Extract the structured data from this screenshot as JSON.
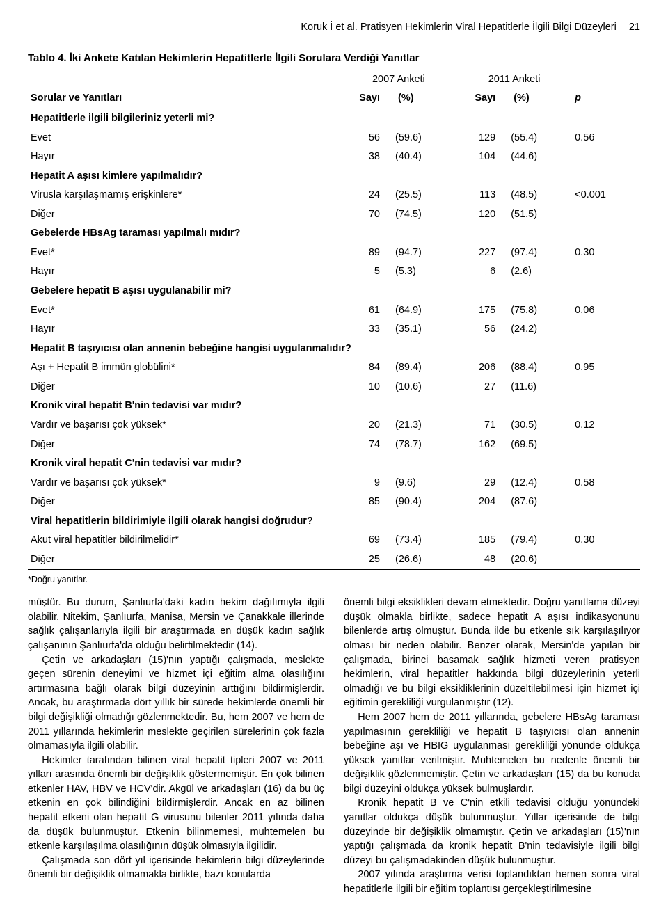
{
  "header": {
    "left": "Koruk İ et al. Pratisyen Hekimlerin Viral Hepatitlerle İlgili Bilgi Düzeyleri",
    "page": "21"
  },
  "table": {
    "title": "Tablo 4. İki Ankete Katılan Hekimlerin Hepatitlerle İlgili Sorulara Verdiği Yanıtlar",
    "col_group_a": "2007 Anketi",
    "col_group_b": "2011 Anketi",
    "col_q": "Sorular ve Yanıtları",
    "col_sayi": "Sayı",
    "col_pct": "(%)",
    "col_p": "p",
    "sections": [
      {
        "q": "Hepatitlerle ilgili bilgileriniz yeterli mi?",
        "rows": [
          [
            "Evet",
            "56",
            "(59.6)",
            "129",
            "(55.4)",
            "0.56"
          ],
          [
            "Hayır",
            "38",
            "(40.4)",
            "104",
            "(44.6)",
            ""
          ]
        ]
      },
      {
        "q": "Hepatit A aşısı kimlere yapılmalıdır?",
        "rows": [
          [
            "Virusla karşılaşmamış erişkinlere*",
            "24",
            "(25.5)",
            "113",
            "(48.5)",
            "<0.001"
          ],
          [
            "Diğer",
            "70",
            "(74.5)",
            "120",
            "(51.5)",
            ""
          ]
        ]
      },
      {
        "q": "Gebelerde HBsAg taraması yapılmalı mıdır?",
        "rows": [
          [
            "Evet*",
            "89",
            "(94.7)",
            "227",
            "(97.4)",
            "0.30"
          ],
          [
            "Hayır",
            "5",
            "(5.3)",
            "6",
            "(2.6)",
            ""
          ]
        ]
      },
      {
        "q": "Gebelere hepatit B aşısı uygulanabilir mi?",
        "rows": [
          [
            "Evet*",
            "61",
            "(64.9)",
            "175",
            "(75.8)",
            "0.06"
          ],
          [
            "Hayır",
            "33",
            "(35.1)",
            "56",
            "(24.2)",
            ""
          ]
        ]
      },
      {
        "q": "Hepatit B taşıyıcısı olan annenin bebeğine hangisi uygulanmalıdır?",
        "rows": [
          [
            "Aşı + Hepatit B immün globülini*",
            "84",
            "(89.4)",
            "206",
            "(88.4)",
            "0.95"
          ],
          [
            "Diğer",
            "10",
            "(10.6)",
            "27",
            "(11.6)",
            ""
          ]
        ]
      },
      {
        "q": "Kronik viral hepatit B'nin tedavisi var mıdır?",
        "rows": [
          [
            "Vardır ve başarısı çok yüksek*",
            "20",
            "(21.3)",
            "71",
            "(30.5)",
            "0.12"
          ],
          [
            "Diğer",
            "74",
            "(78.7)",
            "162",
            "(69.5)",
            ""
          ]
        ]
      },
      {
        "q": "Kronik viral hepatit C'nin tedavisi var mıdır?",
        "rows": [
          [
            "Vardır ve başarısı çok yüksek*",
            "9",
            "(9.6)",
            "29",
            "(12.4)",
            "0.58"
          ],
          [
            "Diğer",
            "85",
            "(90.4)",
            "204",
            "(87.6)",
            ""
          ]
        ]
      },
      {
        "q": "Viral hepatitlerin bildirimiyle ilgili olarak hangisi doğrudur?",
        "rows": [
          [
            "Akut viral hepatitler bildirilmelidir*",
            "69",
            "(73.4)",
            "185",
            "(79.4)",
            "0.30"
          ],
          [
            "Diğer",
            "25",
            "(26.6)",
            "48",
            "(20.6)",
            ""
          ]
        ]
      }
    ],
    "footnote": "*Doğru yanıtlar."
  },
  "body": {
    "left": [
      "müştür. Bu durum, Şanlıurfa'daki kadın hekim dağılımıyla ilgili olabilir. Nitekim, Şanlıurfa, Manisa, Mersin ve Çanakkale illerinde sağlık çalışanlarıyla ilgili bir araştırmada en düşük kadın sağlık çalışanının Şanlıurfa'da olduğu belirtilmektedir (14).",
      "Çetin ve arkadaşları (15)'nın yaptığı çalışmada, meslekte geçen sürenin deneyimi ve hizmet içi eğitim alma olasılığını artırmasına bağlı olarak bilgi düzeyinin arttığını bildirmişlerdir. Ancak, bu araştırmada dört yıllık bir sürede hekimlerde önemli bir bilgi değişikliği olmadığı gözlenmektedir. Bu, hem 2007 ve hem de 2011 yıllarında hekimlerin meslekte geçirilen sürelerinin çok fazla olmamasıyla ilgili olabilir.",
      "Hekimler tarafından bilinen viral hepatit tipleri 2007 ve 2011 yılları arasında önemli bir değişiklik göstermemiştir. En çok bilinen etkenler HAV, HBV ve HCV'dir. Akgül ve arkadaşları (16) da bu üç etkenin en çok bilindiğini bildirmişlerdir. Ancak en az bilinen hepatit etkeni olan hepatit G virusunu bilenler 2011 yılında daha da düşük bulunmuştur. Etkenin bilinmemesi, muhtemelen bu etkenle karşılaşılma olasılığının düşük olmasıyla ilgilidir.",
      "Çalışmada son dört yıl içerisinde hekimlerin bilgi düzeylerinde önemli bir değişiklik olmamakla birlikte, bazı konularda"
    ],
    "right": [
      "önemli bilgi eksiklikleri devam etmektedir. Doğru yanıtlama düzeyi düşük olmakla birlikte, sadece hepatit A aşısı indikasyonunu bilenlerde artış olmuştur. Bunda ilde bu etkenle sık karşılaşılıyor olması bir neden olabilir. Benzer olarak, Mersin'de yapılan bir çalışmada, birinci basamak sağlık hizmeti veren pratisyen hekimlerin, viral hepatitler hakkında bilgi düzeylerinin yeterli olmadığı ve bu bilgi eksikliklerinin düzeltilebilmesi için hizmet içi eğitimin gerekliliği vurgulanmıştır (12).",
      "Hem 2007 hem de 2011 yıllarında, gebelere HBsAg taraması yapılmasının gerekliliği ve hepatit B taşıyıcısı olan annenin bebeğine aşı ve HBIG uygulanması gerekliliği yönünde oldukça yüksek yanıtlar verilmiştir. Muhtemelen bu nedenle önemli bir değişiklik gözlenmemiştir. Çetin ve arkadaşları (15) da bu konuda bilgi düzeyini oldukça yüksek bulmuşlardır.",
      "Kronik hepatit B ve C'nin etkili tedavisi olduğu yönündeki yanıtlar oldukça düşük bulunmuştur. Yıllar içerisinde de bilgi düzeyinde bir değişiklik olmamıştır. Çetin ve arkadaşları (15)'nın yaptığı çalışmada da kronik hepatit B'nin tedavisiyle ilgili bilgi düzeyi bu çalışmadakinden düşük bulunmuştur.",
      "2007 yılında araştırma verisi toplandıktan hemen sonra viral hepatitlerle ilgili bir eğitim toplantısı gerçekleştirilmesine"
    ]
  }
}
